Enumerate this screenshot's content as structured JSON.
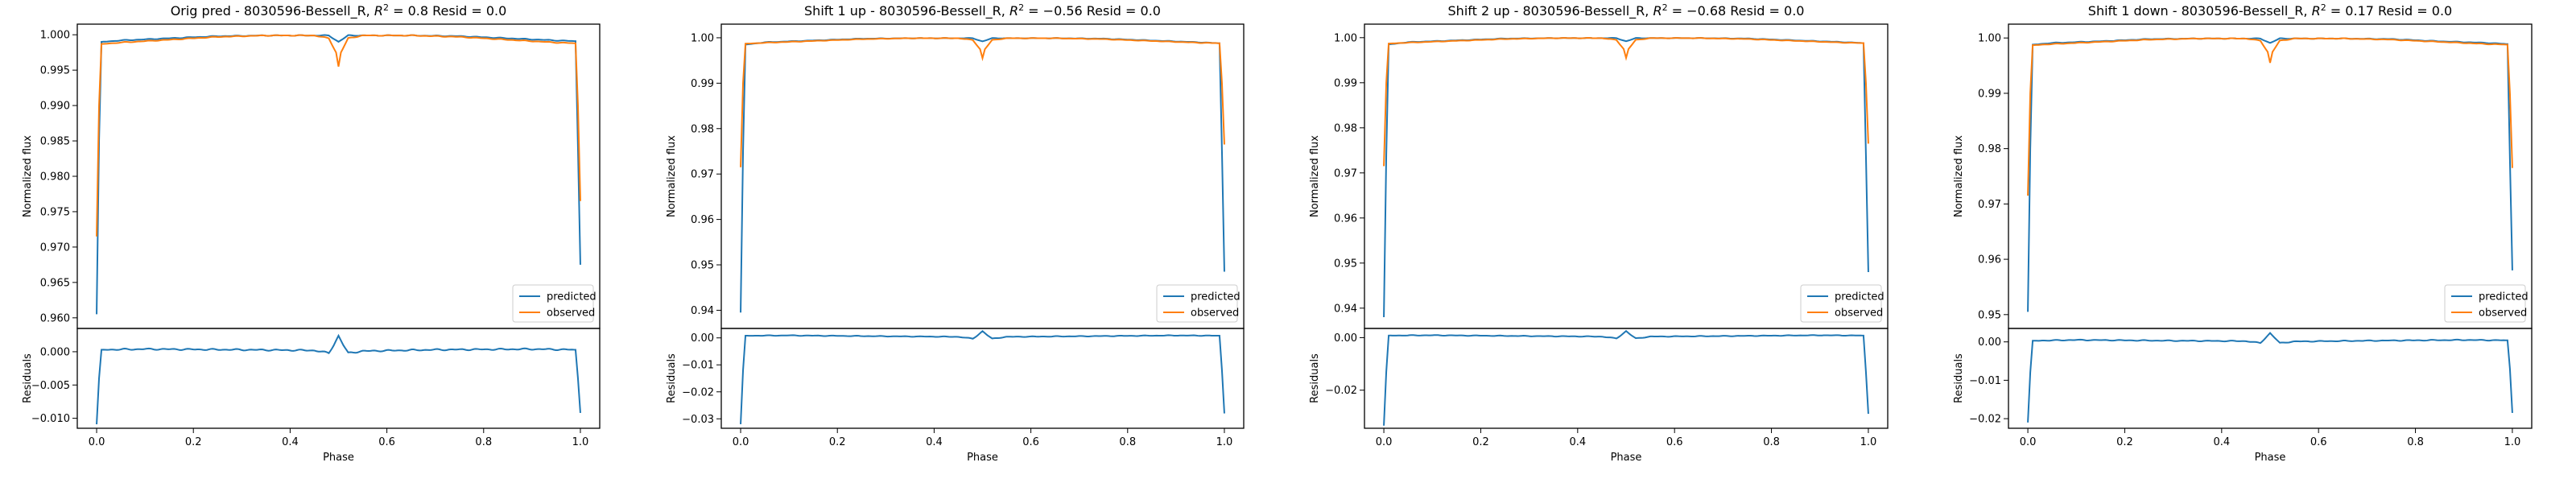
{
  "colors": {
    "predicted": "#1f77b4",
    "observed": "#ff7f0e",
    "axes": "#000000",
    "background": "#ffffff"
  },
  "chart_data": [
    {
      "type": "line",
      "title": "Orig pred - 8030596-Bessell_R, $R^2=0.8$ Resid = 0.0",
      "title_parts": {
        "prefix": "Orig pred - 8030596-Bessell_R, ",
        "r2_symbol": "R",
        "r2_sup": "2",
        "r2_value": " = 0.8",
        "resid": " Resid = 0.0"
      },
      "xlabel": "Phase",
      "top_ylabel": "Normalized flux",
      "bottom_ylabel": "Residuals",
      "xlim": [
        -0.04,
        1.04
      ],
      "xticks": [
        0.0,
        0.2,
        0.4,
        0.6,
        0.8,
        1.0
      ],
      "xtick_labels": [
        "0.0",
        "0.2",
        "0.4",
        "0.6",
        "0.8",
        "1.0"
      ],
      "top_ylim": [
        0.9585,
        1.0015
      ],
      "top_yticks": [
        0.96,
        0.965,
        0.97,
        0.975,
        0.98,
        0.985,
        0.99,
        0.995,
        1.0
      ],
      "top_ytick_labels": [
        "0.960",
        "0.965",
        "0.970",
        "0.975",
        "0.980",
        "0.985",
        "0.990",
        "0.995",
        "1.000"
      ],
      "bottom_ylim": [
        -0.0115,
        0.0035
      ],
      "bottom_yticks": [
        -0.01,
        -0.005,
        0.0
      ],
      "bottom_ytick_labels": [
        "−0.010",
        "−0.005",
        "0.000"
      ],
      "legend": {
        "position": "lower-right",
        "entries": [
          "predicted",
          "observed"
        ]
      },
      "predicted": {
        "name": "predicted",
        "x": [
          0.0,
          0.005,
          0.01,
          0.05,
          0.15,
          0.25,
          0.35,
          0.45,
          0.48,
          0.5,
          0.52,
          0.55,
          0.65,
          0.75,
          0.85,
          0.95,
          0.99,
          0.995,
          1.0
        ],
        "y": [
          0.9605,
          0.985,
          0.999,
          0.9992,
          0.9995,
          0.9998,
          0.9999,
          0.9999,
          0.9999,
          0.999,
          0.9999,
          0.9999,
          0.9999,
          0.9998,
          0.9995,
          0.9992,
          0.9991,
          0.984,
          0.9675
        ]
      },
      "observed": {
        "name": "observed",
        "x": [
          0.0,
          0.005,
          0.01,
          0.05,
          0.15,
          0.25,
          0.35,
          0.45,
          0.48,
          0.495,
          0.5,
          0.505,
          0.52,
          0.55,
          0.65,
          0.75,
          0.85,
          0.95,
          0.99,
          0.995,
          1.0
        ],
        "y": [
          0.9715,
          0.99,
          0.9987,
          0.9989,
          0.9993,
          0.9997,
          0.9999,
          0.9999,
          0.9995,
          0.9975,
          0.9955,
          0.9975,
          0.9995,
          0.9999,
          0.9999,
          0.9997,
          0.9993,
          0.9989,
          0.9988,
          0.99,
          0.9765
        ]
      },
      "residuals": {
        "x": [
          0.0,
          0.005,
          0.01,
          0.1,
          0.3,
          0.45,
          0.48,
          0.49,
          0.5,
          0.51,
          0.52,
          0.55,
          0.7,
          0.9,
          0.99,
          0.995,
          1.0
        ],
        "y": [
          -0.0109,
          -0.004,
          0.0003,
          0.0004,
          0.0003,
          0.0002,
          -0.0002,
          0.001,
          0.0024,
          0.001,
          -0.0002,
          0.0001,
          0.0003,
          0.0004,
          0.0003,
          -0.004,
          -0.0092
        ]
      }
    },
    {
      "type": "line",
      "title": "Shift 1 up - 8030596-Bessell_R, $R^2=-0.56$ Resid = 0.0",
      "title_parts": {
        "prefix": "Shift 1 up - 8030596-Bessell_R, ",
        "r2_symbol": "R",
        "r2_sup": "2",
        "r2_value": " = −0.56",
        "resid": " Resid = 0.0"
      },
      "xlabel": "Phase",
      "top_ylabel": "Normalized flux",
      "bottom_ylabel": "Residuals",
      "xlim": [
        -0.04,
        1.04
      ],
      "xticks": [
        0.0,
        0.2,
        0.4,
        0.6,
        0.8,
        1.0
      ],
      "xtick_labels": [
        "0.0",
        "0.2",
        "0.4",
        "0.6",
        "0.8",
        "1.0"
      ],
      "top_ylim": [
        0.936,
        1.003
      ],
      "top_yticks": [
        0.94,
        0.95,
        0.96,
        0.97,
        0.98,
        0.99,
        1.0
      ],
      "top_ytick_labels": [
        "0.94",
        "0.95",
        "0.96",
        "0.97",
        "0.98",
        "0.99",
        "1.00"
      ],
      "bottom_ylim": [
        -0.0335,
        0.0035
      ],
      "bottom_yticks": [
        -0.03,
        -0.02,
        -0.01,
        0.0
      ],
      "bottom_ytick_labels": [
        "−0.03",
        "−0.02",
        "−0.01",
        "0.00"
      ],
      "legend": {
        "position": "lower-right",
        "entries": [
          "predicted",
          "observed"
        ]
      },
      "predicted": {
        "name": "predicted",
        "x": [
          0.0,
          0.005,
          0.01,
          0.05,
          0.15,
          0.25,
          0.35,
          0.45,
          0.48,
          0.5,
          0.52,
          0.55,
          0.65,
          0.75,
          0.85,
          0.95,
          0.99,
          0.995,
          1.0
        ],
        "y": [
          0.9395,
          0.975,
          0.9985,
          0.999,
          0.9994,
          0.9998,
          0.9999,
          0.9999,
          0.9999,
          0.9992,
          0.9999,
          0.9999,
          0.9999,
          0.9998,
          0.9994,
          0.999,
          0.9988,
          0.975,
          0.9485
        ]
      },
      "observed": {
        "name": "observed",
        "x": [
          0.0,
          0.005,
          0.01,
          0.05,
          0.15,
          0.25,
          0.35,
          0.45,
          0.48,
          0.495,
          0.5,
          0.505,
          0.52,
          0.55,
          0.65,
          0.75,
          0.85,
          0.95,
          0.99,
          0.995,
          1.0
        ],
        "y": [
          0.9715,
          0.99,
          0.9987,
          0.9989,
          0.9993,
          0.9997,
          0.9999,
          0.9999,
          0.9995,
          0.9975,
          0.9955,
          0.9975,
          0.9995,
          0.9999,
          0.9999,
          0.9997,
          0.9993,
          0.9989,
          0.9988,
          0.99,
          0.9765
        ]
      },
      "residuals": {
        "x": [
          0.0,
          0.005,
          0.01,
          0.1,
          0.3,
          0.45,
          0.48,
          0.49,
          0.5,
          0.51,
          0.52,
          0.55,
          0.7,
          0.9,
          0.99,
          0.995,
          1.0
        ],
        "y": [
          -0.032,
          -0.012,
          0.0008,
          0.0009,
          0.0006,
          0.0004,
          -0.0003,
          0.001,
          0.0025,
          0.001,
          -0.0003,
          0.0004,
          0.0006,
          0.0009,
          0.0008,
          -0.012,
          -0.028
        ]
      }
    },
    {
      "type": "line",
      "title": "Shift 2 up - 8030596-Bessell_R, $R^2=-0.68$ Resid = 0.0",
      "title_parts": {
        "prefix": "Shift 2 up - 8030596-Bessell_R, ",
        "r2_symbol": "R",
        "r2_sup": "2",
        "r2_value": " = −0.68",
        "resid": " Resid = 0.0"
      },
      "xlabel": "Phase",
      "top_ylabel": "Normalized flux",
      "bottom_ylabel": "Residuals",
      "xlim": [
        -0.04,
        1.04
      ],
      "xticks": [
        0.0,
        0.2,
        0.4,
        0.6,
        0.8,
        1.0
      ],
      "xtick_labels": [
        "0.0",
        "0.2",
        "0.4",
        "0.6",
        "0.8",
        "1.0"
      ],
      "top_ylim": [
        0.9355,
        1.003
      ],
      "top_yticks": [
        0.94,
        0.95,
        0.96,
        0.97,
        0.98,
        0.99,
        1.0
      ],
      "top_ytick_labels": [
        "0.94",
        "0.95",
        "0.96",
        "0.97",
        "0.98",
        "0.99",
        "1.00"
      ],
      "bottom_ylim": [
        -0.0345,
        0.0035
      ],
      "bottom_yticks": [
        -0.02,
        0.0
      ],
      "bottom_ytick_labels": [
        "−0.02",
        "0.00"
      ],
      "legend": {
        "position": "lower-right",
        "entries": [
          "predicted",
          "observed"
        ]
      },
      "predicted": {
        "name": "predicted",
        "x": [
          0.0,
          0.005,
          0.01,
          0.05,
          0.15,
          0.25,
          0.35,
          0.45,
          0.48,
          0.5,
          0.52,
          0.55,
          0.65,
          0.75,
          0.85,
          0.95,
          0.99,
          0.995,
          1.0
        ],
        "y": [
          0.938,
          0.974,
          0.9985,
          0.999,
          0.9994,
          0.9998,
          0.9999,
          0.9999,
          0.9999,
          0.9992,
          0.9999,
          0.9999,
          0.9999,
          0.9998,
          0.9994,
          0.999,
          0.9988,
          0.974,
          0.948
        ]
      },
      "observed": {
        "name": "observed",
        "x": [
          0.0,
          0.005,
          0.01,
          0.05,
          0.15,
          0.25,
          0.35,
          0.45,
          0.48,
          0.495,
          0.5,
          0.505,
          0.52,
          0.55,
          0.65,
          0.75,
          0.85,
          0.95,
          0.99,
          0.995,
          1.0
        ],
        "y": [
          0.9715,
          0.99,
          0.9987,
          0.9989,
          0.9993,
          0.9997,
          0.9999,
          0.9999,
          0.9995,
          0.9975,
          0.9955,
          0.9975,
          0.9995,
          0.9999,
          0.9999,
          0.9997,
          0.9993,
          0.9989,
          0.9988,
          0.99,
          0.9765
        ]
      },
      "residuals": {
        "x": [
          0.0,
          0.005,
          0.01,
          0.1,
          0.3,
          0.45,
          0.48,
          0.49,
          0.5,
          0.51,
          0.52,
          0.55,
          0.7,
          0.9,
          0.99,
          0.995,
          1.0
        ],
        "y": [
          -0.0335,
          -0.013,
          0.0008,
          0.0009,
          0.0006,
          0.0004,
          -0.0003,
          0.001,
          0.0025,
          0.001,
          -0.0003,
          0.0004,
          0.0006,
          0.0009,
          0.0008,
          -0.013,
          -0.029
        ]
      }
    },
    {
      "type": "line",
      "title": "Shift 1 down - 8030596-Bessell_R, $R^2=0.17$ Resid = 0.0",
      "title_parts": {
        "prefix": "Shift 1 down - 8030596-Bessell_R, ",
        "r2_symbol": "R",
        "r2_sup": "2",
        "r2_value": " = 0.17",
        "resid": " Resid = 0.0"
      },
      "xlabel": "Phase",
      "top_ylabel": "Normalized flux",
      "bottom_ylabel": "Residuals",
      "xlim": [
        -0.04,
        1.04
      ],
      "xticks": [
        0.0,
        0.2,
        0.4,
        0.6,
        0.8,
        1.0
      ],
      "xtick_labels": [
        "0.0",
        "0.2",
        "0.4",
        "0.6",
        "0.8",
        "1.0"
      ],
      "top_ylim": [
        0.9475,
        1.0025
      ],
      "top_yticks": [
        0.95,
        0.96,
        0.97,
        0.98,
        0.99,
        1.0
      ],
      "top_ytick_labels": [
        "0.95",
        "0.96",
        "0.97",
        "0.98",
        "0.99",
        "1.00"
      ],
      "bottom_ylim": [
        -0.0225,
        0.0035
      ],
      "bottom_yticks": [
        -0.02,
        -0.01,
        0.0
      ],
      "bottom_ytick_labels": [
        "−0.02",
        "−0.01",
        "0.00"
      ],
      "legend": {
        "position": "lower-right",
        "entries": [
          "predicted",
          "observed"
        ]
      },
      "predicted": {
        "name": "predicted",
        "x": [
          0.0,
          0.005,
          0.01,
          0.05,
          0.15,
          0.25,
          0.35,
          0.45,
          0.48,
          0.5,
          0.52,
          0.55,
          0.65,
          0.75,
          0.85,
          0.95,
          0.99,
          0.995,
          1.0
        ],
        "y": [
          0.9505,
          0.98,
          0.9988,
          0.9991,
          0.9994,
          0.9998,
          0.9999,
          0.9999,
          0.9999,
          0.9991,
          0.9999,
          0.9999,
          0.9999,
          0.9998,
          0.9994,
          0.9991,
          0.9989,
          0.978,
          0.958
        ]
      },
      "observed": {
        "name": "observed",
        "x": [
          0.0,
          0.005,
          0.01,
          0.05,
          0.15,
          0.25,
          0.35,
          0.45,
          0.48,
          0.495,
          0.5,
          0.505,
          0.52,
          0.55,
          0.65,
          0.75,
          0.85,
          0.95,
          0.99,
          0.995,
          1.0
        ],
        "y": [
          0.9715,
          0.99,
          0.9987,
          0.9989,
          0.9993,
          0.9997,
          0.9999,
          0.9999,
          0.9995,
          0.9975,
          0.9955,
          0.9975,
          0.9995,
          0.9999,
          0.9999,
          0.9997,
          0.9993,
          0.9989,
          0.9988,
          0.99,
          0.9765
        ]
      },
      "residuals": {
        "x": [
          0.0,
          0.005,
          0.01,
          0.1,
          0.3,
          0.45,
          0.48,
          0.49,
          0.5,
          0.51,
          0.52,
          0.55,
          0.7,
          0.9,
          0.99,
          0.995,
          1.0
        ],
        "y": [
          -0.021,
          -0.008,
          0.0003,
          0.0005,
          0.0003,
          0.0002,
          -0.0003,
          0.001,
          0.0023,
          0.001,
          -0.0003,
          0.0001,
          0.0003,
          0.0005,
          0.0004,
          -0.007,
          -0.0185
        ]
      }
    }
  ]
}
